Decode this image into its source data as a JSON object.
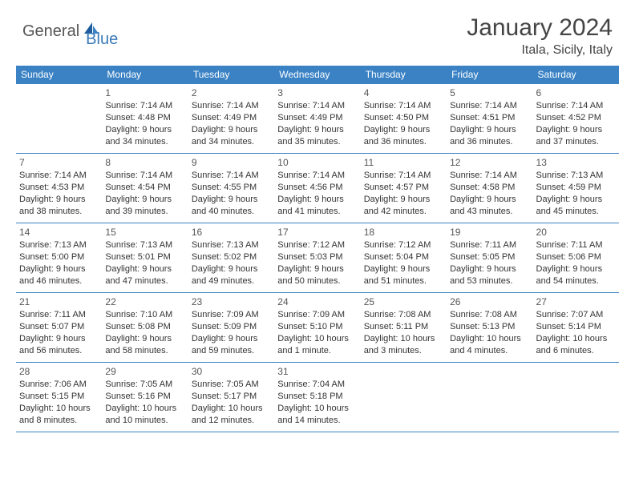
{
  "logo": {
    "text1": "General",
    "text2": "Blue"
  },
  "title": "January 2024",
  "location": "Itala, Sicily, Italy",
  "colors": {
    "header_bg": "#3a82c4",
    "header_text": "#ffffff",
    "row_border": "#3a82c4",
    "body_text": "#333333",
    "logo_accent": "#3a7ab8"
  },
  "weekdays": [
    "Sunday",
    "Monday",
    "Tuesday",
    "Wednesday",
    "Thursday",
    "Friday",
    "Saturday"
  ],
  "weeks": [
    [
      null,
      {
        "n": "1",
        "sr": "Sunrise: 7:14 AM",
        "ss": "Sunset: 4:48 PM",
        "d1": "Daylight: 9 hours",
        "d2": "and 34 minutes."
      },
      {
        "n": "2",
        "sr": "Sunrise: 7:14 AM",
        "ss": "Sunset: 4:49 PM",
        "d1": "Daylight: 9 hours",
        "d2": "and 34 minutes."
      },
      {
        "n": "3",
        "sr": "Sunrise: 7:14 AM",
        "ss": "Sunset: 4:49 PM",
        "d1": "Daylight: 9 hours",
        "d2": "and 35 minutes."
      },
      {
        "n": "4",
        "sr": "Sunrise: 7:14 AM",
        "ss": "Sunset: 4:50 PM",
        "d1": "Daylight: 9 hours",
        "d2": "and 36 minutes."
      },
      {
        "n": "5",
        "sr": "Sunrise: 7:14 AM",
        "ss": "Sunset: 4:51 PM",
        "d1": "Daylight: 9 hours",
        "d2": "and 36 minutes."
      },
      {
        "n": "6",
        "sr": "Sunrise: 7:14 AM",
        "ss": "Sunset: 4:52 PM",
        "d1": "Daylight: 9 hours",
        "d2": "and 37 minutes."
      }
    ],
    [
      {
        "n": "7",
        "sr": "Sunrise: 7:14 AM",
        "ss": "Sunset: 4:53 PM",
        "d1": "Daylight: 9 hours",
        "d2": "and 38 minutes."
      },
      {
        "n": "8",
        "sr": "Sunrise: 7:14 AM",
        "ss": "Sunset: 4:54 PM",
        "d1": "Daylight: 9 hours",
        "d2": "and 39 minutes."
      },
      {
        "n": "9",
        "sr": "Sunrise: 7:14 AM",
        "ss": "Sunset: 4:55 PM",
        "d1": "Daylight: 9 hours",
        "d2": "and 40 minutes."
      },
      {
        "n": "10",
        "sr": "Sunrise: 7:14 AM",
        "ss": "Sunset: 4:56 PM",
        "d1": "Daylight: 9 hours",
        "d2": "and 41 minutes."
      },
      {
        "n": "11",
        "sr": "Sunrise: 7:14 AM",
        "ss": "Sunset: 4:57 PM",
        "d1": "Daylight: 9 hours",
        "d2": "and 42 minutes."
      },
      {
        "n": "12",
        "sr": "Sunrise: 7:14 AM",
        "ss": "Sunset: 4:58 PM",
        "d1": "Daylight: 9 hours",
        "d2": "and 43 minutes."
      },
      {
        "n": "13",
        "sr": "Sunrise: 7:13 AM",
        "ss": "Sunset: 4:59 PM",
        "d1": "Daylight: 9 hours",
        "d2": "and 45 minutes."
      }
    ],
    [
      {
        "n": "14",
        "sr": "Sunrise: 7:13 AM",
        "ss": "Sunset: 5:00 PM",
        "d1": "Daylight: 9 hours",
        "d2": "and 46 minutes."
      },
      {
        "n": "15",
        "sr": "Sunrise: 7:13 AM",
        "ss": "Sunset: 5:01 PM",
        "d1": "Daylight: 9 hours",
        "d2": "and 47 minutes."
      },
      {
        "n": "16",
        "sr": "Sunrise: 7:13 AM",
        "ss": "Sunset: 5:02 PM",
        "d1": "Daylight: 9 hours",
        "d2": "and 49 minutes."
      },
      {
        "n": "17",
        "sr": "Sunrise: 7:12 AM",
        "ss": "Sunset: 5:03 PM",
        "d1": "Daylight: 9 hours",
        "d2": "and 50 minutes."
      },
      {
        "n": "18",
        "sr": "Sunrise: 7:12 AM",
        "ss": "Sunset: 5:04 PM",
        "d1": "Daylight: 9 hours",
        "d2": "and 51 minutes."
      },
      {
        "n": "19",
        "sr": "Sunrise: 7:11 AM",
        "ss": "Sunset: 5:05 PM",
        "d1": "Daylight: 9 hours",
        "d2": "and 53 minutes."
      },
      {
        "n": "20",
        "sr": "Sunrise: 7:11 AM",
        "ss": "Sunset: 5:06 PM",
        "d1": "Daylight: 9 hours",
        "d2": "and 54 minutes."
      }
    ],
    [
      {
        "n": "21",
        "sr": "Sunrise: 7:11 AM",
        "ss": "Sunset: 5:07 PM",
        "d1": "Daylight: 9 hours",
        "d2": "and 56 minutes."
      },
      {
        "n": "22",
        "sr": "Sunrise: 7:10 AM",
        "ss": "Sunset: 5:08 PM",
        "d1": "Daylight: 9 hours",
        "d2": "and 58 minutes."
      },
      {
        "n": "23",
        "sr": "Sunrise: 7:09 AM",
        "ss": "Sunset: 5:09 PM",
        "d1": "Daylight: 9 hours",
        "d2": "and 59 minutes."
      },
      {
        "n": "24",
        "sr": "Sunrise: 7:09 AM",
        "ss": "Sunset: 5:10 PM",
        "d1": "Daylight: 10 hours",
        "d2": "and 1 minute."
      },
      {
        "n": "25",
        "sr": "Sunrise: 7:08 AM",
        "ss": "Sunset: 5:11 PM",
        "d1": "Daylight: 10 hours",
        "d2": "and 3 minutes."
      },
      {
        "n": "26",
        "sr": "Sunrise: 7:08 AM",
        "ss": "Sunset: 5:13 PM",
        "d1": "Daylight: 10 hours",
        "d2": "and 4 minutes."
      },
      {
        "n": "27",
        "sr": "Sunrise: 7:07 AM",
        "ss": "Sunset: 5:14 PM",
        "d1": "Daylight: 10 hours",
        "d2": "and 6 minutes."
      }
    ],
    [
      {
        "n": "28",
        "sr": "Sunrise: 7:06 AM",
        "ss": "Sunset: 5:15 PM",
        "d1": "Daylight: 10 hours",
        "d2": "and 8 minutes."
      },
      {
        "n": "29",
        "sr": "Sunrise: 7:05 AM",
        "ss": "Sunset: 5:16 PM",
        "d1": "Daylight: 10 hours",
        "d2": "and 10 minutes."
      },
      {
        "n": "30",
        "sr": "Sunrise: 7:05 AM",
        "ss": "Sunset: 5:17 PM",
        "d1": "Daylight: 10 hours",
        "d2": "and 12 minutes."
      },
      {
        "n": "31",
        "sr": "Sunrise: 7:04 AM",
        "ss": "Sunset: 5:18 PM",
        "d1": "Daylight: 10 hours",
        "d2": "and 14 minutes."
      },
      null,
      null,
      null
    ]
  ]
}
